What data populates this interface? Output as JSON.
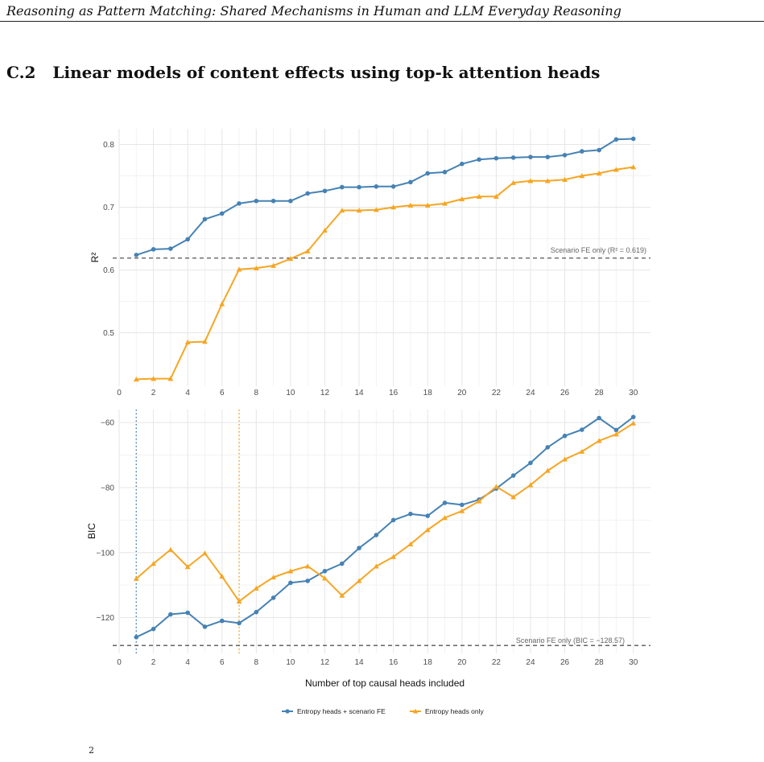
{
  "header": {
    "running_title": "Reasoning as Pattern Matching: Shared Mechanisms in Human and LLM Everyday Reasoning"
  },
  "section": {
    "number": "C.2",
    "title": "Linear models of content effects using top-k attention heads"
  },
  "caption_fragment": "2",
  "colors": {
    "scenario_fe": "#4682b4",
    "heads_only": "#f5a623",
    "grid": "#ebebeb",
    "reference_line": "#555555"
  },
  "chart_data": [
    {
      "type": "line",
      "ylabel": "R²",
      "xlim": [
        0,
        31
      ],
      "ylim": [
        0.415,
        0.825
      ],
      "xticks": [
        0,
        2,
        4,
        6,
        8,
        10,
        12,
        14,
        16,
        18,
        20,
        22,
        24,
        26,
        28,
        30
      ],
      "yticks": [
        0.5,
        0.6,
        0.7,
        0.8
      ],
      "ytick_labels": [
        "0.5",
        "0.6",
        "0.7",
        "0.8"
      ],
      "grid": true,
      "x": [
        1,
        2,
        3,
        4,
        5,
        6,
        7,
        8,
        9,
        10,
        11,
        12,
        13,
        14,
        15,
        16,
        17,
        18,
        19,
        20,
        21,
        22,
        23,
        24,
        25,
        26,
        27,
        28,
        29,
        30
      ],
      "series": [
        {
          "name": "Entropy heads + scenario FE",
          "marker": "circle",
          "color": "#4682b4",
          "values": [
            0.624,
            0.633,
            0.634,
            0.649,
            0.681,
            0.69,
            0.706,
            0.71,
            0.71,
            0.71,
            0.722,
            0.726,
            0.732,
            0.732,
            0.733,
            0.733,
            0.74,
            0.754,
            0.756,
            0.769,
            0.776,
            0.778,
            0.779,
            0.78,
            0.78,
            0.783,
            0.789,
            0.791,
            0.808,
            0.809
          ]
        },
        {
          "name": "Entropy heads only",
          "marker": "triangle",
          "color": "#f5a623",
          "values": [
            0.426,
            0.427,
            0.427,
            0.485,
            0.486,
            0.546,
            0.601,
            0.603,
            0.607,
            0.618,
            0.63,
            0.663,
            0.695,
            0.695,
            0.696,
            0.7,
            0.703,
            0.703,
            0.706,
            0.713,
            0.717,
            0.717,
            0.739,
            0.742,
            0.742,
            0.744,
            0.75,
            0.754,
            0.76,
            0.764
          ]
        }
      ],
      "reference_line": {
        "value": 0.619,
        "label": "Scenario FE only (R² = 0.619)"
      }
    },
    {
      "type": "line",
      "xlabel": "Number of top causal heads included",
      "ylabel": "BIC",
      "xlim": [
        0,
        31
      ],
      "ylim": [
        -131,
        -56
      ],
      "xticks": [
        0,
        2,
        4,
        6,
        8,
        10,
        12,
        14,
        16,
        18,
        20,
        22,
        24,
        26,
        28,
        30
      ],
      "yticks": [
        -120,
        -100,
        -80,
        -60
      ],
      "ytick_labels": [
        "−120",
        "−100",
        "−80",
        "−60"
      ],
      "grid": true,
      "x": [
        1,
        2,
        3,
        4,
        5,
        6,
        7,
        8,
        9,
        10,
        11,
        12,
        13,
        14,
        15,
        16,
        17,
        18,
        19,
        20,
        21,
        22,
        23,
        24,
        25,
        26,
        27,
        28,
        29,
        30
      ],
      "series": [
        {
          "name": "Entropy heads + scenario FE",
          "marker": "circle",
          "color": "#4682b4",
          "values": [
            -126,
            -123.5,
            -119,
            -118.5,
            -122.8,
            -121,
            -121.7,
            -118.3,
            -113.9,
            -109.3,
            -108.7,
            -105.7,
            -103.4,
            -98.6,
            -94.6,
            -90,
            -88.1,
            -88.7,
            -84.7,
            -85.3,
            -83.7,
            -80.3,
            -76.3,
            -72.4,
            -67.6,
            -64.1,
            -62.2,
            -58.6,
            -62.3,
            -58.3
          ]
        },
        {
          "name": "Entropy heads only",
          "marker": "triangle",
          "color": "#f5a623",
          "values": [
            -108,
            -103.4,
            -99.1,
            -104.4,
            -100.2,
            -107.3,
            -115,
            -111,
            -107.6,
            -105.7,
            -104.2,
            -107.9,
            -113.2,
            -108.7,
            -104.2,
            -101.3,
            -97.4,
            -93,
            -89.3,
            -87.2,
            -84.2,
            -79.7,
            -82.9,
            -79.2,
            -74.8,
            -71.3,
            -68.9,
            -65.6,
            -63.6,
            -60.2
          ]
        }
      ],
      "reference_line": {
        "value": -128.57,
        "label": "Scenario FE only (BIC = −128.57)"
      },
      "vertical_lines": [
        {
          "x": 1,
          "color": "#4682b4"
        },
        {
          "x": 7,
          "color": "#f5a623"
        }
      ]
    }
  ],
  "legend": {
    "position": "bottom",
    "items": [
      {
        "label": "Entropy heads + scenario FE",
        "marker": "circle",
        "color": "#4682b4"
      },
      {
        "label": "Entropy heads only",
        "marker": "triangle",
        "color": "#f5a623"
      }
    ]
  }
}
